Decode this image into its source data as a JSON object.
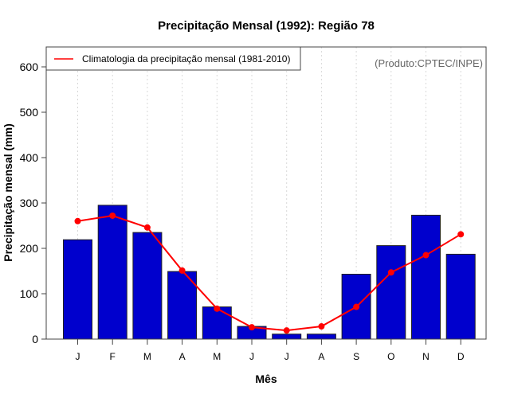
{
  "chart_data": {
    "type": "bar",
    "title": "Precipitação Mensal (1992): Região 78",
    "xlabel": "Mês",
    "ylabel": "Precipitação mensal (mm)",
    "ylim": [
      0,
      640
    ],
    "yticks": [
      0,
      100,
      200,
      300,
      400,
      500,
      600
    ],
    "categories": [
      "J",
      "F",
      "M",
      "A",
      "M",
      "J",
      "J",
      "A",
      "S",
      "O",
      "N",
      "D"
    ],
    "grid": "vertical dotted",
    "series": [
      {
        "name": "Precipitação mensal (1992)",
        "type": "bar",
        "color": "#0000CD",
        "values": [
          219,
          295,
          235,
          149,
          71,
          28,
          11,
          11,
          143,
          206,
          273,
          187
        ]
      },
      {
        "name": "Climatologia da precipitação mensal (1981-2010)",
        "type": "line",
        "color": "#FF0000",
        "values": [
          260,
          272,
          246,
          151,
          67,
          26,
          19,
          28,
          71,
          147,
          185,
          231
        ]
      }
    ],
    "legend": {
      "placement": "top-left",
      "entries": [
        "Climatologia da precipitação mensal (1981-2010)"
      ]
    },
    "annotation": "(Produto:CPTEC/INPE)"
  }
}
